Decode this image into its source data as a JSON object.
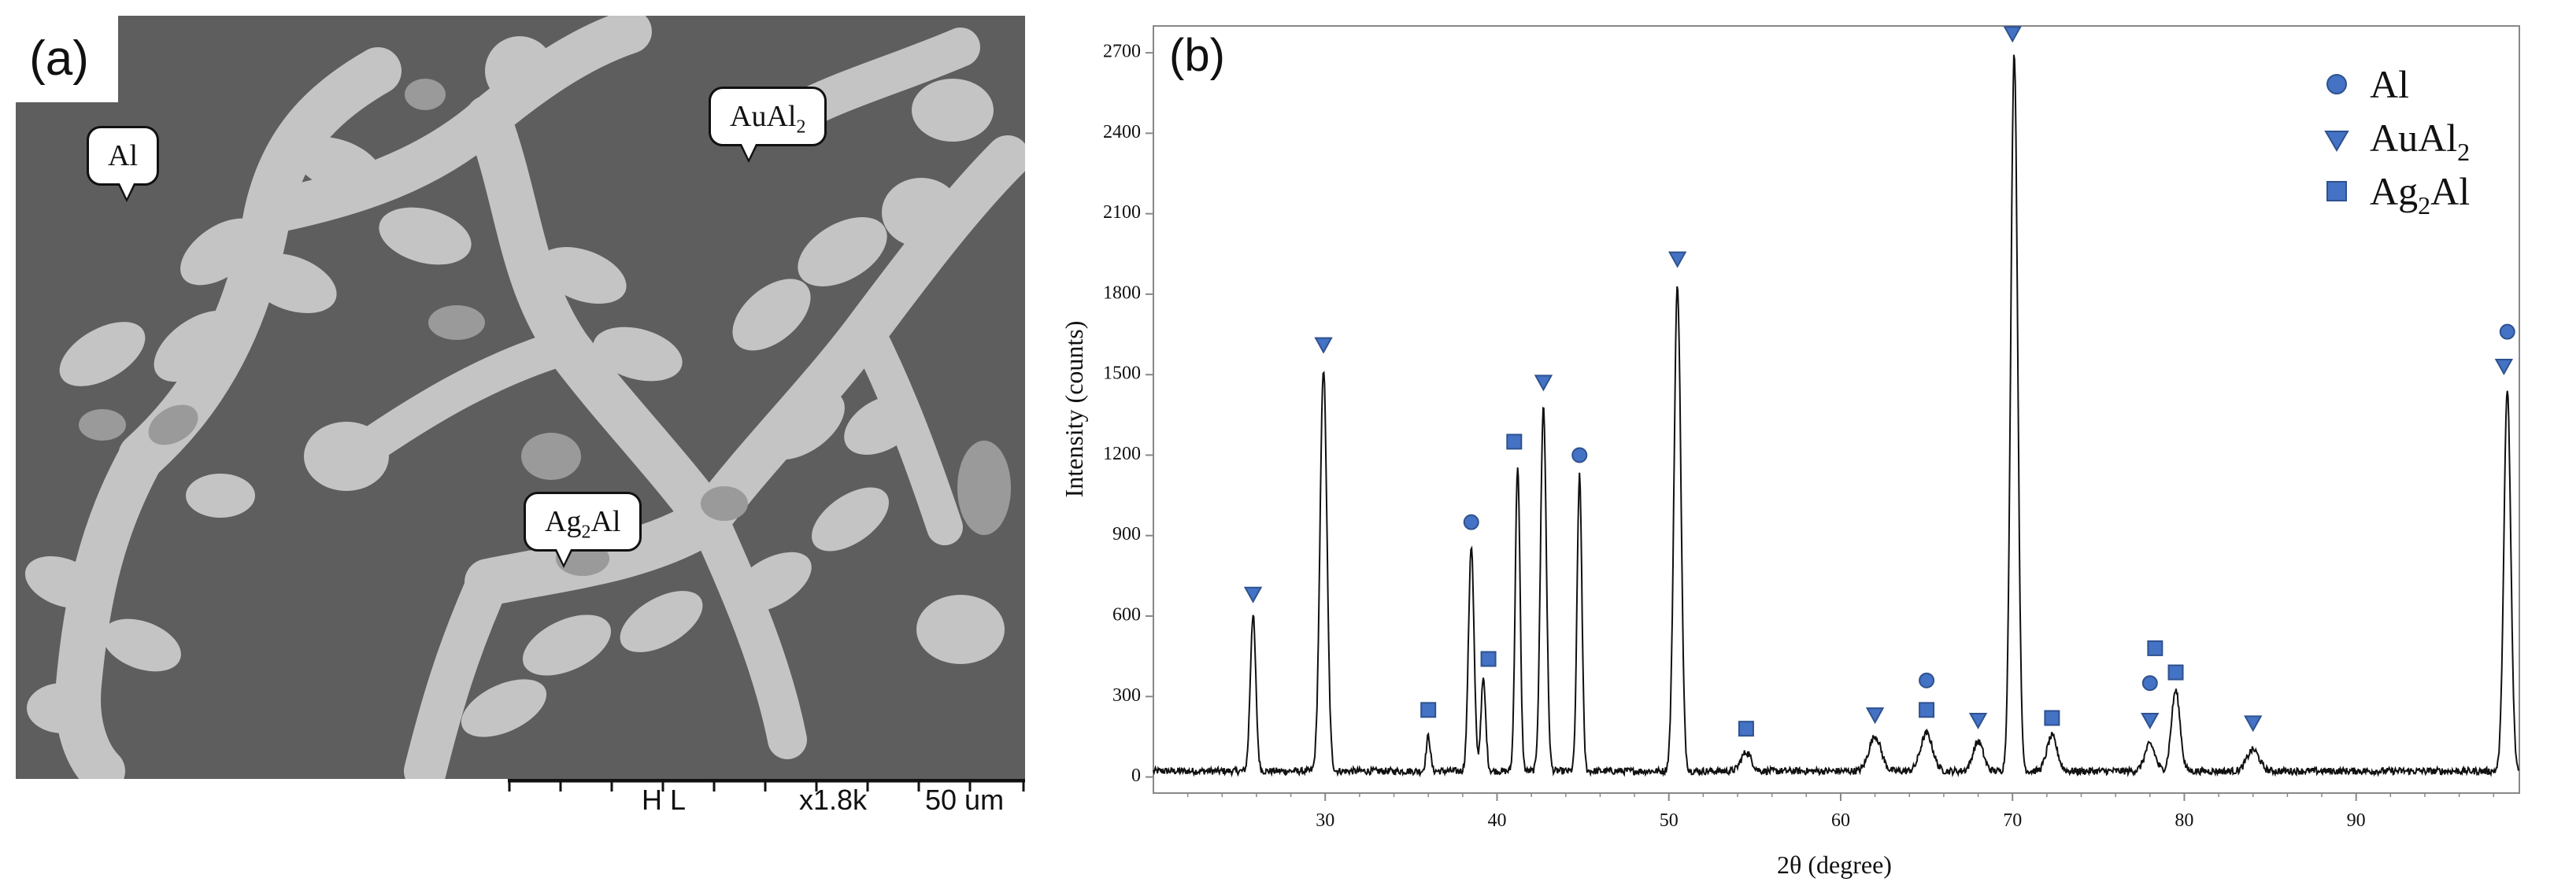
{
  "panel_a": {
    "label": "(a)",
    "callouts": {
      "al": "Al",
      "aual2": "AuAl",
      "aual2_sub": "2",
      "ag2al_a": "Ag",
      "ag2al_sub": "2",
      "ag2al_b": "Al"
    },
    "scalebar": {
      "mode": "H L",
      "magnification": "x1.8k",
      "length": "50 um"
    },
    "colors": {
      "matrix": "#5e5e5e",
      "phase_light": "#c4c4c4",
      "phase_mid": "#9a9a9a"
    }
  },
  "chart_data": {
    "type": "line",
    "label": "(b)",
    "xlabel": "2θ (degree)",
    "ylabel": "Intensity (counts)",
    "xlim": [
      20,
      99.5
    ],
    "ylim": [
      -60,
      2800
    ],
    "xticks": [
      30,
      40,
      50,
      60,
      70,
      80,
      90
    ],
    "yticks": [
      0,
      300,
      600,
      900,
      1200,
      1500,
      1800,
      2100,
      2400,
      2700
    ],
    "baseline": 22,
    "peaks": [
      {
        "x": 25.8,
        "y": 580,
        "w": 0.16
      },
      {
        "x": 29.9,
        "y": 1500,
        "w": 0.2
      },
      {
        "x": 36.0,
        "y": 130,
        "w": 0.12
      },
      {
        "x": 38.5,
        "y": 840,
        "w": 0.16
      },
      {
        "x": 39.2,
        "y": 340,
        "w": 0.14
      },
      {
        "x": 41.2,
        "y": 1140,
        "w": 0.14
      },
      {
        "x": 42.7,
        "y": 1360,
        "w": 0.17
      },
      {
        "x": 44.8,
        "y": 1100,
        "w": 0.14
      },
      {
        "x": 50.5,
        "y": 1810,
        "w": 0.2
      },
      {
        "x": 54.5,
        "y": 70,
        "w": 0.3
      },
      {
        "x": 62.0,
        "y": 130,
        "w": 0.35
      },
      {
        "x": 65.0,
        "y": 140,
        "w": 0.35
      },
      {
        "x": 68.0,
        "y": 110,
        "w": 0.3
      },
      {
        "x": 70.1,
        "y": 2680,
        "w": 0.2
      },
      {
        "x": 72.3,
        "y": 130,
        "w": 0.3
      },
      {
        "x": 78.0,
        "y": 100,
        "w": 0.3
      },
      {
        "x": 79.5,
        "y": 300,
        "w": 0.25
      },
      {
        "x": 84.0,
        "y": 80,
        "w": 0.35
      },
      {
        "x": 98.8,
        "y": 1420,
        "w": 0.2
      }
    ],
    "legend": [
      {
        "marker": "circle",
        "label": "Al",
        "sub": ""
      },
      {
        "marker": "triangle-down",
        "label": "AuAl",
        "sub": "2"
      },
      {
        "marker": "square",
        "label": "Ag",
        "sub": "2",
        "suffix": "Al"
      }
    ],
    "markers": [
      {
        "type": "triangle",
        "x": 25.8,
        "y": 680
      },
      {
        "type": "triangle",
        "x": 29.9,
        "y": 1610
      },
      {
        "type": "square",
        "x": 36.0,
        "y": 250
      },
      {
        "type": "circle",
        "x": 38.5,
        "y": 950
      },
      {
        "type": "square",
        "x": 39.5,
        "y": 440
      },
      {
        "type": "square",
        "x": 41.0,
        "y": 1250
      },
      {
        "type": "triangle",
        "x": 42.7,
        "y": 1470
      },
      {
        "type": "circle",
        "x": 44.8,
        "y": 1200
      },
      {
        "type": "triangle",
        "x": 50.5,
        "y": 1930
      },
      {
        "type": "square",
        "x": 54.5,
        "y": 180
      },
      {
        "type": "triangle",
        "x": 62.0,
        "y": 230
      },
      {
        "type": "circle",
        "x": 65.0,
        "y": 360
      },
      {
        "type": "square",
        "x": 65.0,
        "y": 250
      },
      {
        "type": "triangle",
        "x": 68.0,
        "y": 210
      },
      {
        "type": "triangle",
        "x": 70.0,
        "y": 2770
      },
      {
        "type": "square",
        "x": 72.3,
        "y": 220
      },
      {
        "type": "square",
        "x": 78.3,
        "y": 480
      },
      {
        "type": "circle",
        "x": 78.0,
        "y": 350
      },
      {
        "type": "square",
        "x": 79.5,
        "y": 390
      },
      {
        "type": "triangle",
        "x": 78.0,
        "y": 210
      },
      {
        "type": "triangle",
        "x": 84.0,
        "y": 200
      },
      {
        "type": "circle",
        "x": 98.8,
        "y": 1660
      },
      {
        "type": "triangle",
        "x": 98.6,
        "y": 1530
      }
    ],
    "colors": {
      "marker": "#4472c4",
      "marker_stroke": "#2f528f",
      "line": "#111111"
    }
  }
}
